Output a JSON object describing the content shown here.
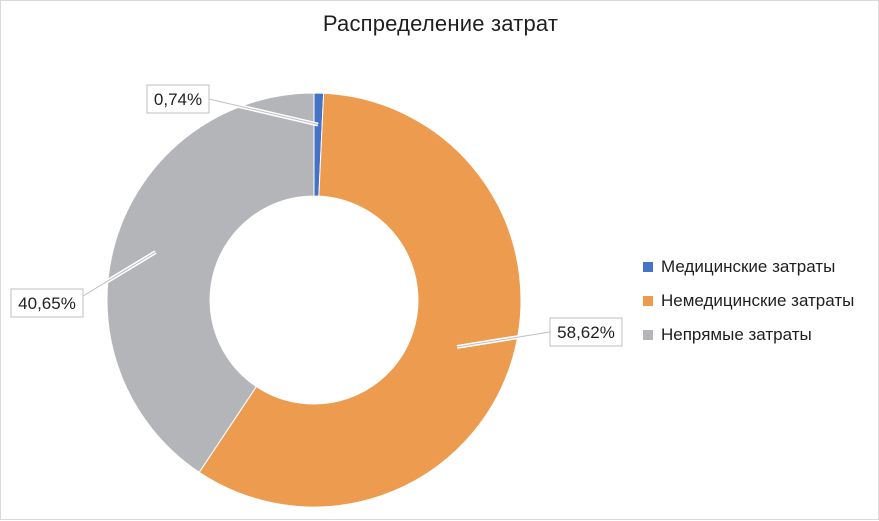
{
  "chart_data": {
    "type": "pie",
    "title": "Распределение затрат",
    "donut": true,
    "categories": [
      "Медицинские затраты",
      "Немедицинские затраты",
      "Непрямые затраты"
    ],
    "values": [
      0.74,
      58.62,
      40.65
    ],
    "data_labels": [
      "0,74%",
      "58,62%",
      "40,65%"
    ],
    "colors": [
      "#4472C4",
      "#ED9B4E",
      "#B4B5B9"
    ],
    "legend_position": "right",
    "start_angle_deg": 0,
    "direction": "clockwise"
  }
}
